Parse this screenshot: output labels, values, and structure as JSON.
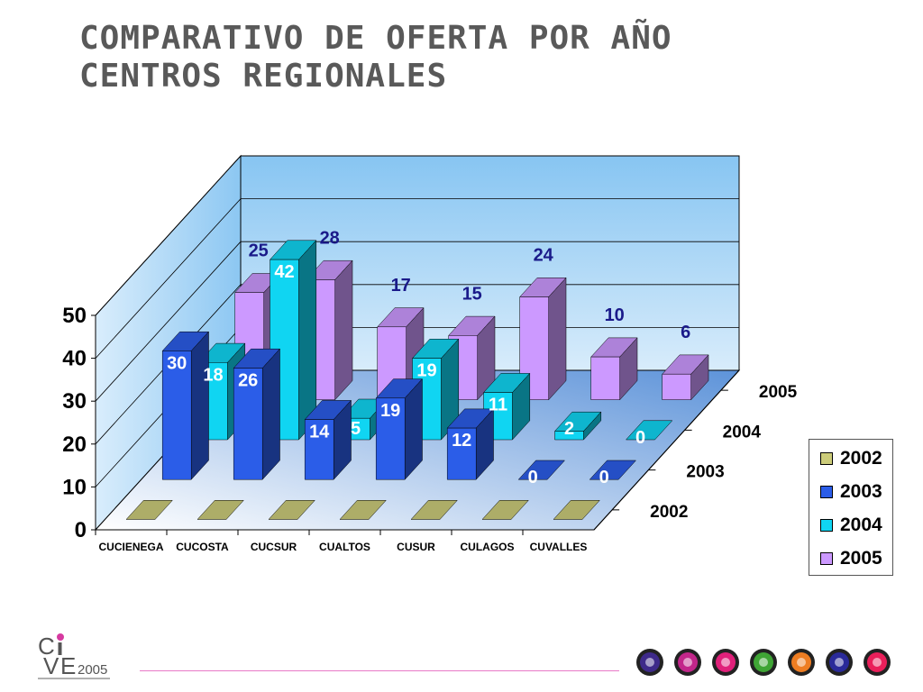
{
  "title": {
    "line1": "COMPARATIVO DE OFERTA POR AÑO",
    "line2": "CENTROS REGIONALES"
  },
  "chart_data": {
    "type": "bar",
    "categories": [
      "CUCIENEGA",
      "CUCOSTA",
      "CUCSUR",
      "CUALTOS",
      "CUSUR",
      "CULAGOS",
      "CUVALLES"
    ],
    "series": [
      {
        "name": "2002",
        "values": [
          0,
          0,
          0,
          0,
          0,
          0,
          0
        ],
        "color": "#cccc7a"
      },
      {
        "name": "2003",
        "values": [
          30,
          26,
          14,
          19,
          12,
          0,
          0
        ],
        "color": "#2b5de8"
      },
      {
        "name": "2004",
        "values": [
          18,
          42,
          5,
          19,
          11,
          2,
          0
        ],
        "color": "#10d5f2"
      },
      {
        "name": "2005",
        "values": [
          25,
          28,
          17,
          15,
          24,
          10,
          6
        ],
        "color": "#cc99ff"
      }
    ],
    "ylim": [
      0,
      50
    ],
    "yticks": [
      0,
      10,
      20,
      30,
      40,
      50
    ],
    "depth_labels": [
      "2002",
      "2003",
      "2004",
      "2005"
    ],
    "legend": {
      "position": "right"
    },
    "grid": true
  },
  "footer": {
    "logo_text": "CIVE",
    "logo_year": "2005",
    "icon_colors": [
      "#3e2a8a",
      "#c2268a",
      "#e0207a",
      "#3fa535",
      "#ee7d22",
      "#2a2a9a",
      "#ea1f5a"
    ]
  }
}
